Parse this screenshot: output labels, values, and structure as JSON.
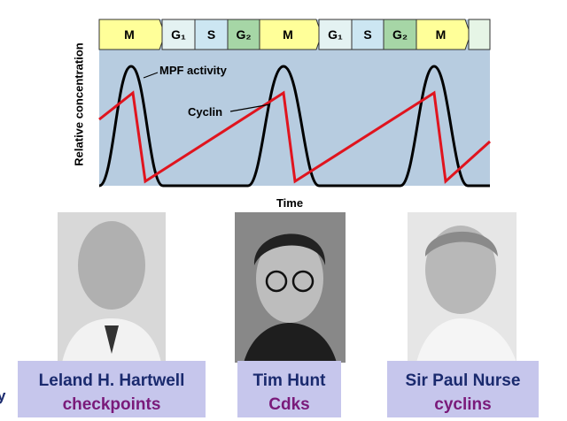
{
  "diagram": {
    "phases": [
      "M",
      "G₁",
      "S",
      "G₂",
      "M",
      "G₁",
      "S",
      "G₂",
      "M"
    ],
    "y_axis_label": "Relative concentration",
    "x_axis_label": "Time",
    "annotations": [
      "MPF activity",
      "Cyclin"
    ]
  },
  "laureates": [
    {
      "name": "Leland H. Hartwell",
      "keyword": "checkpoints"
    },
    {
      "name": "Tim Hunt",
      "keyword": "Cdks"
    },
    {
      "name": "Sir Paul Nurse",
      "keyword": "cyclins"
    }
  ],
  "edge_text": "y"
}
